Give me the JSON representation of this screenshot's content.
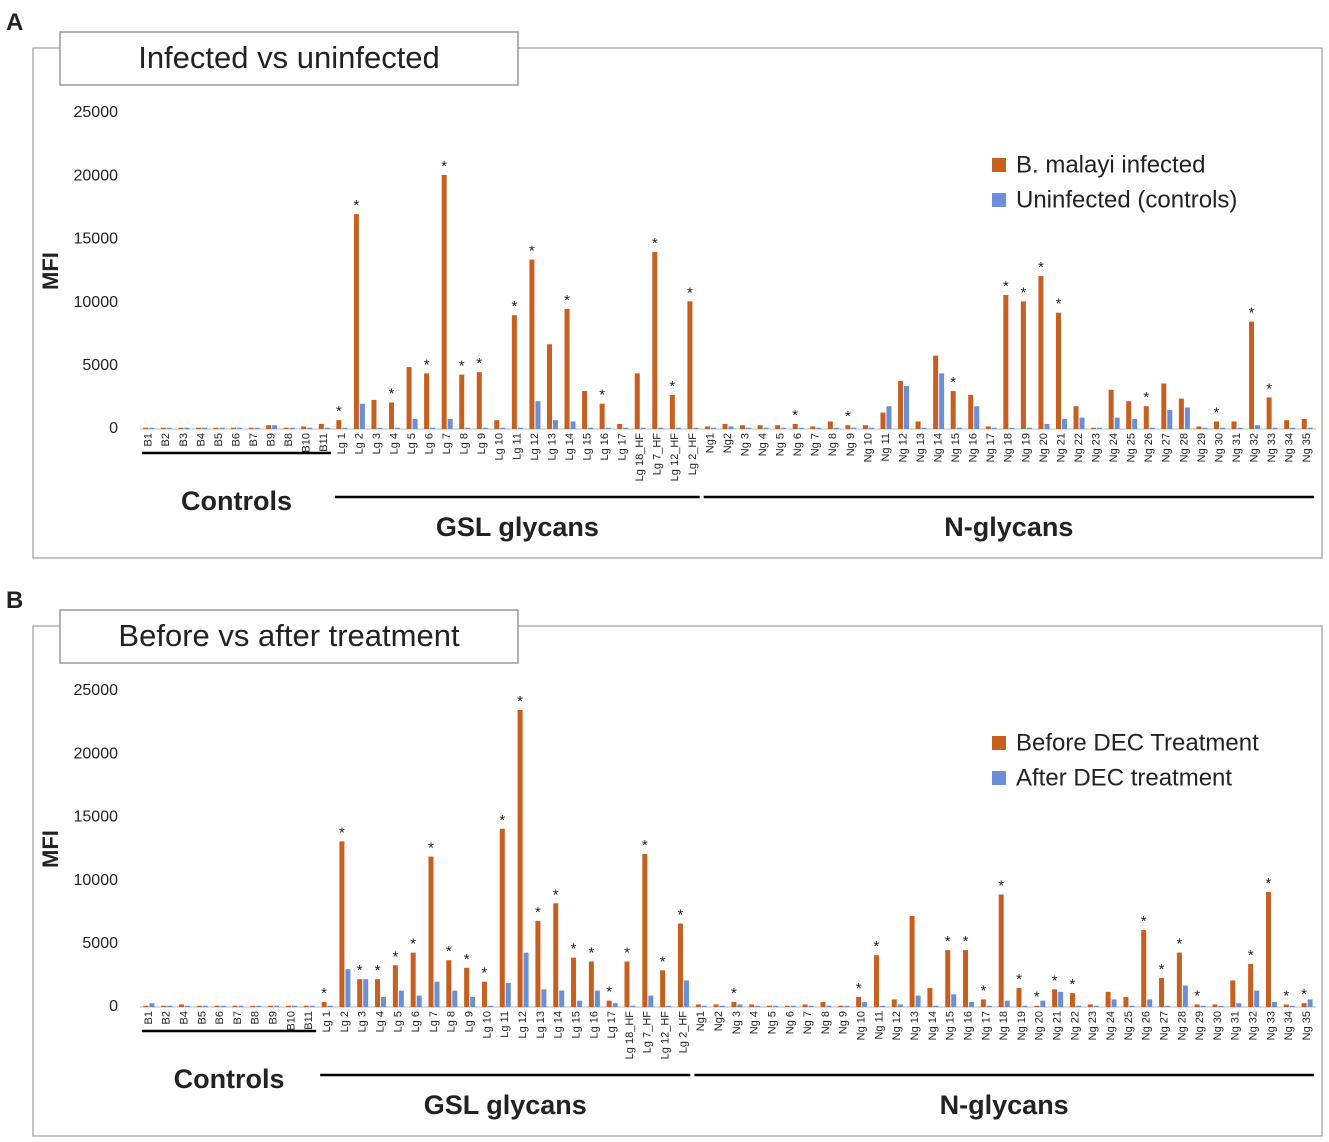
{
  "chart_data": [
    {
      "type": "bar",
      "panel": "A",
      "title": "Infected vs uninfected",
      "y_label": "MFI",
      "ylim": [
        0,
        25000
      ],
      "yticks": [
        0,
        5000,
        10000,
        15000,
        20000,
        25000
      ],
      "legend": "upper right",
      "categories": [
        "B1",
        "B2",
        "B3",
        "B4",
        "B5",
        "B6",
        "B7",
        "B9",
        "B8",
        "B10",
        "B11",
        "Lg 1",
        "Lg 2",
        "Lg 3",
        "Lg 4",
        "Lg 5",
        "Lg 6",
        "Lg 7",
        "Lg 8",
        "Lg 9",
        "Lg 10",
        "Lg 11",
        "Lg 12",
        "Lg 13",
        "Lg 14",
        "Lg 15",
        "Lg 16",
        "Lg 17",
        "Lg 18_HF",
        "Lg 7_HF",
        "Lg 12_HF",
        "Lg 2_HF",
        "Ng1",
        "Ng2",
        "Ng 3",
        "Ng 4",
        "Ng 5",
        "Ng 6",
        "Ng 7",
        "Ng 8",
        "Ng 9",
        "Ng 10",
        "Ng 11",
        "Ng 12",
        "Ng 13",
        "Ng 14",
        "Ng 15",
        "Ng 16",
        "Ng 17",
        "Ng 18",
        "Ng 19",
        "Ng 20",
        "Ng 21",
        "Ng 22",
        "Ng 23",
        "Ng 24",
        "Ng 25",
        "Ng 26",
        "Ng 27",
        "Ng 28",
        "Ng 29",
        "Ng 30",
        "Ng 31",
        "Ng 32",
        "Ng 33",
        "Ng 34",
        "Ng 35"
      ],
      "groups": [
        {
          "label": "Controls",
          "from": "B1",
          "to": "B11"
        },
        {
          "label": "GSL glycans",
          "from": "Lg 1",
          "to": "Lg 2_HF"
        },
        {
          "label": "N-glycans",
          "from": "Ng1",
          "to": "Ng 35"
        }
      ],
      "series": [
        {
          "name": "B. malayi infected",
          "color": "#c65f1f",
          "values": [
            100,
            100,
            100,
            100,
            100,
            100,
            100,
            300,
            100,
            200,
            400,
            700,
            17000,
            2300,
            2100,
            4900,
            4400,
            20100,
            4300,
            4500,
            700,
            9000,
            13400,
            6700,
            9500,
            3000,
            2000,
            400,
            4400,
            14000,
            2700,
            10100,
            200,
            400,
            300,
            300,
            300,
            400,
            200,
            600,
            300,
            300,
            1300,
            3800,
            600,
            5800,
            3000,
            2700,
            200,
            10600,
            10100,
            12100,
            9200,
            1800,
            100,
            3100,
            2200,
            1800,
            3600,
            2400,
            200,
            600,
            600,
            8500,
            2500,
            700,
            800
          ],
          "annotations": [
            null,
            null,
            null,
            null,
            null,
            null,
            null,
            null,
            null,
            null,
            null,
            "*",
            "*",
            null,
            "*",
            null,
            "*",
            "*",
            "*",
            "*",
            null,
            "*",
            "*",
            null,
            "*",
            null,
            "*",
            null,
            null,
            "*",
            "*",
            "*",
            null,
            null,
            null,
            null,
            null,
            "*",
            null,
            null,
            "*",
            null,
            null,
            null,
            null,
            null,
            "*",
            null,
            null,
            "*",
            "*",
            "*",
            "*",
            null,
            null,
            null,
            null,
            "*",
            null,
            null,
            null,
            "*",
            null,
            "*",
            "*",
            null,
            null
          ]
        },
        {
          "name": "Uninfected (controls)",
          "color": "#6a8fd8",
          "values": [
            100,
            100,
            100,
            100,
            100,
            100,
            100,
            300,
            100,
            100,
            100,
            100,
            2000,
            100,
            100,
            800,
            100,
            800,
            100,
            100,
            100,
            100,
            2200,
            700,
            600,
            100,
            100,
            100,
            100,
            100,
            100,
            100,
            100,
            200,
            100,
            100,
            100,
            100,
            100,
            100,
            100,
            100,
            1800,
            3400,
            100,
            4400,
            100,
            1800,
            100,
            100,
            100,
            400,
            800,
            900,
            100,
            900,
            800,
            100,
            1500,
            1700,
            100,
            100,
            100,
            300,
            100,
            100,
            100
          ]
        }
      ]
    },
    {
      "type": "bar",
      "panel": "B",
      "title": "Before vs after treatment",
      "y_label": "MFI",
      "ylim": [
        0,
        25000
      ],
      "yticks": [
        0,
        5000,
        10000,
        15000,
        20000,
        25000
      ],
      "legend": "upper right",
      "categories": [
        "B1",
        "B2",
        "B4",
        "B5",
        "B6",
        "B7",
        "B8",
        "B9",
        "B10",
        "B11",
        "Lg 1",
        "Lg 2",
        "Lg 3",
        "Lg 4",
        "Lg 5",
        "Lg 6",
        "Lg 7",
        "Lg 8",
        "Lg 9",
        "Lg 10",
        "Lg 11",
        "Lg 12",
        "Lg 13",
        "Lg 14",
        "Lg 15",
        "Lg 16",
        "Lg 17",
        "Lg 18_HF",
        "Lg 7_HF",
        "Lg 12_HF",
        "Lg 2_HF",
        "Ng1",
        "Ng2",
        "Ng 3",
        "Ng 4",
        "Ng 5",
        "Ng 6",
        "Ng 7",
        "Ng 8",
        "Ng 9",
        "Ng 10",
        "Ng 11",
        "Ng 12",
        "Ng 13",
        "Ng 14",
        "Ng 15",
        "Ng 16",
        "Ng 17",
        "Ng 18",
        "Ng 19",
        "Ng 20",
        "Ng 21",
        "Ng 22",
        "Ng 23",
        "Ng 24",
        "Ng 25",
        "Ng 26",
        "Ng 27",
        "Ng 28",
        "Ng 29",
        "Ng 30",
        "Ng 31",
        "Ng 32",
        "Ng 33",
        "Ng 34",
        "Ng 35"
      ],
      "groups": [
        {
          "label": "Controls",
          "from": "B1",
          "to": "B11"
        },
        {
          "label": "GSL glycans",
          "from": "Lg 1",
          "to": "Lg 2_HF"
        },
        {
          "label": "N-glycans",
          "from": "Ng1",
          "to": "Ng 35"
        }
      ],
      "series": [
        {
          "name": "Before DEC Treatment",
          "color": "#c65f1f",
          "values": [
            100,
            100,
            200,
            100,
            100,
            100,
            100,
            100,
            100,
            100,
            400,
            13100,
            2200,
            2200,
            3300,
            4300,
            11900,
            3700,
            3100,
            2000,
            14100,
            23500,
            6800,
            8200,
            3900,
            3600,
            500,
            3600,
            12100,
            2900,
            6600,
            200,
            200,
            400,
            200,
            100,
            100,
            200,
            400,
            100,
            800,
            4100,
            600,
            7200,
            1500,
            4500,
            4500,
            600,
            8900,
            1500,
            100,
            1400,
            1100,
            200,
            1200,
            800,
            6100,
            2300,
            4300,
            200,
            200,
            2100,
            3400,
            9100,
            200,
            300
          ],
          "annotations": [
            null,
            null,
            null,
            null,
            null,
            null,
            null,
            null,
            null,
            null,
            "*",
            "*",
            "*",
            "*",
            "*",
            "*",
            "*",
            "*",
            "*",
            "*",
            "*",
            "*",
            "*",
            "*",
            "*",
            "*",
            "*",
            "*",
            "*",
            "*",
            "*",
            null,
            null,
            "*",
            null,
            null,
            null,
            null,
            null,
            null,
            "*",
            "*",
            null,
            null,
            null,
            "*",
            "*",
            "*",
            "*",
            "*",
            "*",
            "*",
            "*",
            null,
            null,
            null,
            "*",
            "*",
            "*",
            "*",
            null,
            null,
            "*",
            "*",
            "*",
            "*"
          ]
        },
        {
          "name": "After DEC treatment",
          "color": "#6a8fd8",
          "values": [
            300,
            100,
            100,
            100,
            100,
            100,
            100,
            100,
            100,
            100,
            100,
            3000,
            2200,
            800,
            1300,
            900,
            2000,
            1300,
            800,
            100,
            1900,
            4300,
            1400,
            1300,
            500,
            1300,
            300,
            100,
            900,
            100,
            2100,
            100,
            100,
            200,
            100,
            100,
            100,
            100,
            100,
            100,
            400,
            100,
            200,
            900,
            100,
            1000,
            400,
            100,
            500,
            100,
            500,
            1200,
            100,
            100,
            600,
            100,
            600,
            100,
            1700,
            100,
            100,
            300,
            1300,
            400,
            100,
            600
          ]
        }
      ]
    }
  ]
}
